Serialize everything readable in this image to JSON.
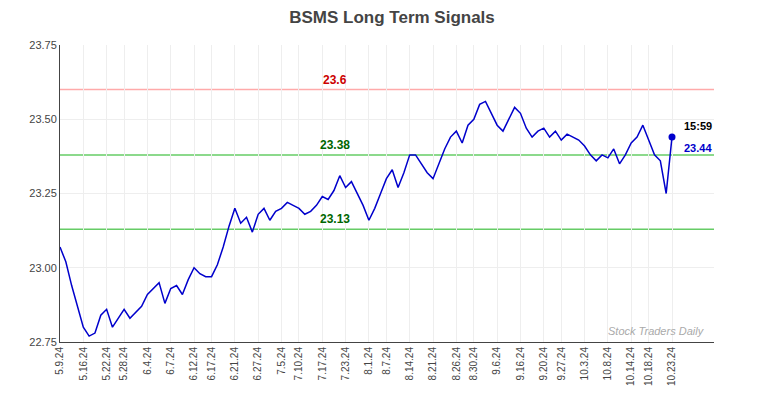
{
  "chart_data": {
    "type": "line",
    "title": "BSMS Long Term Signals",
    "categories": [
      "5.9.24",
      null,
      null,
      null,
      "5.16.24",
      null,
      null,
      null,
      "5.22.24",
      null,
      null,
      "5.28.24",
      null,
      null,
      null,
      "6.4.24",
      null,
      null,
      null,
      "6.7.24",
      null,
      null,
      null,
      "6.12.24",
      null,
      null,
      "6.17.24",
      null,
      null,
      null,
      "6.21.24",
      null,
      null,
      null,
      "6.27.24",
      null,
      null,
      null,
      "7.5.24",
      null,
      null,
      "7.10.24",
      null,
      null,
      null,
      "7.17.24",
      null,
      null,
      null,
      "7.23.24",
      null,
      null,
      null,
      "8.1.24",
      null,
      null,
      "8.7.24",
      null,
      null,
      null,
      "8.14.24",
      null,
      null,
      null,
      "8.21.24",
      null,
      null,
      null,
      "8.26.24",
      null,
      null,
      "8.30.24",
      null,
      null,
      null,
      "9.6.24",
      null,
      null,
      null,
      "9.16.24",
      null,
      null,
      null,
      "9.20.24",
      null,
      null,
      "9.27.24",
      null,
      null,
      null,
      "10.3.24",
      null,
      null,
      null,
      "10.8.24",
      null,
      null,
      null,
      "10.14.24",
      null,
      null,
      "10.18.24",
      null,
      null,
      null,
      "10.23.24"
    ],
    "values": [
      23.07,
      23.02,
      22.94,
      22.87,
      22.8,
      22.77,
      22.78,
      22.84,
      22.86,
      22.8,
      22.83,
      22.86,
      22.83,
      22.85,
      22.87,
      22.91,
      22.93,
      22.95,
      22.88,
      22.93,
      22.94,
      22.91,
      22.96,
      23.0,
      22.98,
      22.97,
      22.97,
      23.01,
      23.07,
      23.14,
      23.2,
      23.15,
      23.17,
      23.12,
      23.18,
      23.2,
      23.16,
      23.19,
      23.2,
      23.22,
      23.21,
      23.2,
      23.18,
      23.19,
      23.21,
      23.24,
      23.23,
      23.26,
      23.31,
      23.27,
      23.29,
      23.25,
      23.21,
      23.16,
      23.2,
      23.25,
      23.3,
      23.33,
      23.27,
      23.32,
      23.38,
      23.38,
      23.35,
      23.32,
      23.3,
      23.35,
      23.4,
      23.44,
      23.46,
      23.42,
      23.48,
      23.5,
      23.55,
      23.56,
      23.52,
      23.48,
      23.46,
      23.5,
      23.54,
      23.52,
      23.47,
      23.44,
      23.46,
      23.47,
      23.44,
      23.46,
      23.43,
      23.45,
      23.44,
      23.43,
      23.41,
      23.38,
      23.36,
      23.38,
      23.37,
      23.4,
      23.35,
      23.38,
      23.42,
      23.44,
      23.48,
      23.43,
      23.38,
      23.36,
      23.25,
      23.44
    ],
    "color": "#0000cc",
    "hlines": [
      {
        "value": 23.6,
        "label": "23.6",
        "color": "#ffaaaa",
        "label_color": "#cc0000"
      },
      {
        "value": 23.38,
        "label": "23.38",
        "color": "#66cc66",
        "label_color": "#006600"
      },
      {
        "value": 23.13,
        "label": "23.13",
        "color": "#66cc66",
        "label_color": "#006600"
      }
    ],
    "annotations": [
      {
        "text": "15:59",
        "color": "#000000"
      },
      {
        "text": "23.44",
        "color": "#0000cc"
      }
    ],
    "watermark": {
      "text": "Stock Traders Daily",
      "color": "#aaaaaa"
    },
    "ylim": [
      22.75,
      23.75
    ],
    "yticks": [
      22.75,
      {
        "value": 23.0,
        "label": "23.00"
      },
      23.25,
      {
        "value": 23.5,
        "label": "23.50"
      },
      23.75
    ],
    "grid": true
  }
}
